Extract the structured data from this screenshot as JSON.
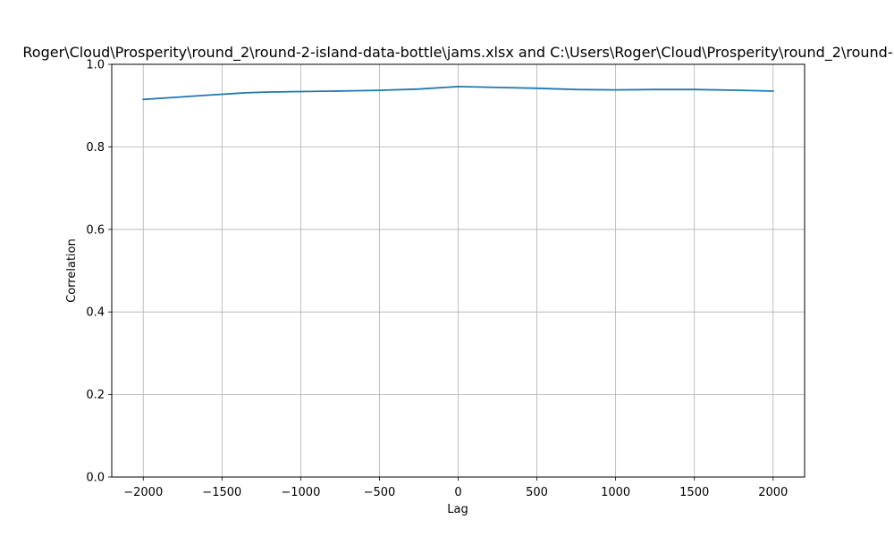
{
  "figure": {
    "background": "#ffffff"
  },
  "chart_data": {
    "type": "line",
    "title": "Roger\\Cloud\\Prosperity\\round_2\\round-2-island-data-bottle\\jams.xlsx and C:\\Users\\Roger\\Cloud\\Prosperity\\round_2\\round-",
    "xlabel": "Lag",
    "ylabel": "Correlation",
    "xlim": [
      -2200,
      2200
    ],
    "ylim": [
      0,
      1
    ],
    "grid": true,
    "x_ticks": [
      -2000,
      -1500,
      -1000,
      -500,
      0,
      500,
      1000,
      1500,
      2000
    ],
    "x_tick_labels": [
      "−2000",
      "−1500",
      "−1000",
      "−500",
      "0",
      "500",
      "1000",
      "1500",
      "2000"
    ],
    "y_ticks": [
      0,
      0.2,
      0.4,
      0.6,
      0.8,
      1.0
    ],
    "y_tick_labels": [
      "0.0",
      "0.2",
      "0.4",
      "0.6",
      "0.8",
      "1.0"
    ],
    "series": [
      {
        "color": "#1f77b4",
        "x": [
          -2000,
          -1800,
          -1600,
          -1350,
          -1200,
          -1000,
          -800,
          -500,
          -250,
          0,
          250,
          500,
          750,
          1000,
          1250,
          1500,
          1800,
          2000
        ],
        "y": [
          0.915,
          0.92,
          0.925,
          0.931,
          0.933,
          0.934,
          0.935,
          0.937,
          0.94,
          0.946,
          0.944,
          0.942,
          0.939,
          0.938,
          0.939,
          0.939,
          0.937,
          0.935
        ]
      }
    ]
  }
}
